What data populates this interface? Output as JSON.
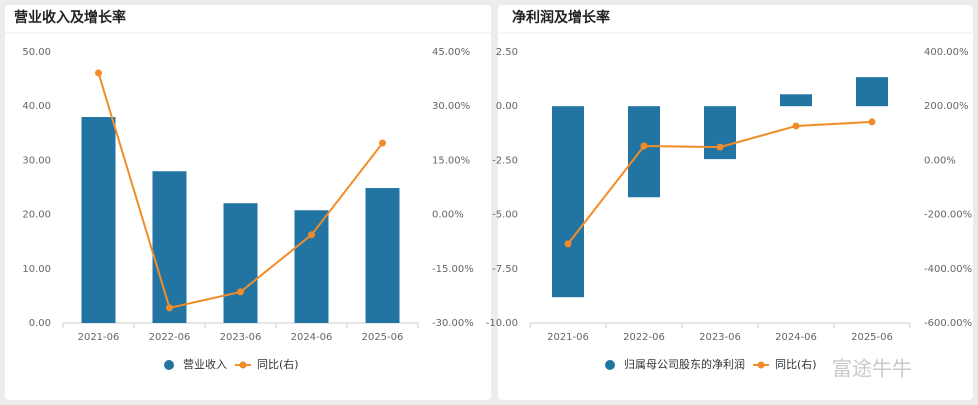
{
  "chart_data": [
    {
      "type": "bar",
      "title": "营业收入及增长率",
      "categories": [
        "2021-06",
        "2022-06",
        "2023-06",
        "2024-06",
        "2025-06"
      ],
      "series": [
        {
          "name": "营业收入",
          "color": "#2275a3",
          "type": "bar",
          "values": [
            38.0,
            28.0,
            22.1,
            20.8,
            24.9
          ]
        },
        {
          "name": "同比(右)",
          "color": "#f28c28",
          "type": "line",
          "axis": "y2",
          "values": [
            39.2,
            -25.8,
            -21.4,
            -5.6,
            19.8
          ]
        }
      ],
      "ylim": [
        0,
        50
      ],
      "yticks": [
        {
          "value": 0,
          "label": "0.00"
        },
        {
          "value": 10,
          "label": "10.00"
        },
        {
          "value": 20,
          "label": "20.00"
        },
        {
          "value": 30,
          "label": "30.00"
        },
        {
          "value": 40,
          "label": "40.00"
        },
        {
          "value": 50,
          "label": "50.00"
        }
      ],
      "y2lim": [
        -30,
        45
      ],
      "y2ticks": [
        {
          "value": -30,
          "label": "-30.00%"
        },
        {
          "value": -15,
          "label": "-15.00%"
        },
        {
          "value": 0,
          "label": "0.00%"
        },
        {
          "value": 15,
          "label": "15.00%"
        },
        {
          "value": 30,
          "label": "30.00%"
        },
        {
          "value": 45,
          "label": "45.00%"
        }
      ],
      "grid": false
    },
    {
      "type": "bar",
      "title": "净利润及增长率",
      "categories": [
        "2021-06",
        "2022-06",
        "2023-06",
        "2024-06",
        "2025-06"
      ],
      "series": [
        {
          "name": "归属母公司股东的净利润",
          "color": "#2275a3",
          "type": "bar",
          "values": [
            -8.81,
            -4.2,
            -2.44,
            0.55,
            1.34
          ]
        },
        {
          "name": "同比(右)",
          "color": "#f28c28",
          "type": "line",
          "axis": "y2",
          "values": [
            -308,
            53,
            49,
            127,
            142
          ]
        }
      ],
      "ylim": [
        -10,
        2.5
      ],
      "yticks": [
        {
          "value": -10,
          "label": "-10.00"
        },
        {
          "value": -7.5,
          "label": "-7.50"
        },
        {
          "value": -5,
          "label": "-5.00"
        },
        {
          "value": -2.5,
          "label": "-2.50"
        },
        {
          "value": 0,
          "label": "0.00"
        },
        {
          "value": 2.5,
          "label": "2.50"
        }
      ],
      "y2lim": [
        -600,
        400
      ],
      "y2ticks": [
        {
          "value": -600,
          "label": "-600.00%"
        },
        {
          "value": -400,
          "label": "-400.00%"
        },
        {
          "value": -200,
          "label": "-200.00%"
        },
        {
          "value": 0,
          "label": "0.00%"
        },
        {
          "value": 200,
          "label": "200.00%"
        },
        {
          "value": 400,
          "label": "400.00%"
        }
      ],
      "grid": false
    }
  ],
  "watermark": "富途牛牛"
}
